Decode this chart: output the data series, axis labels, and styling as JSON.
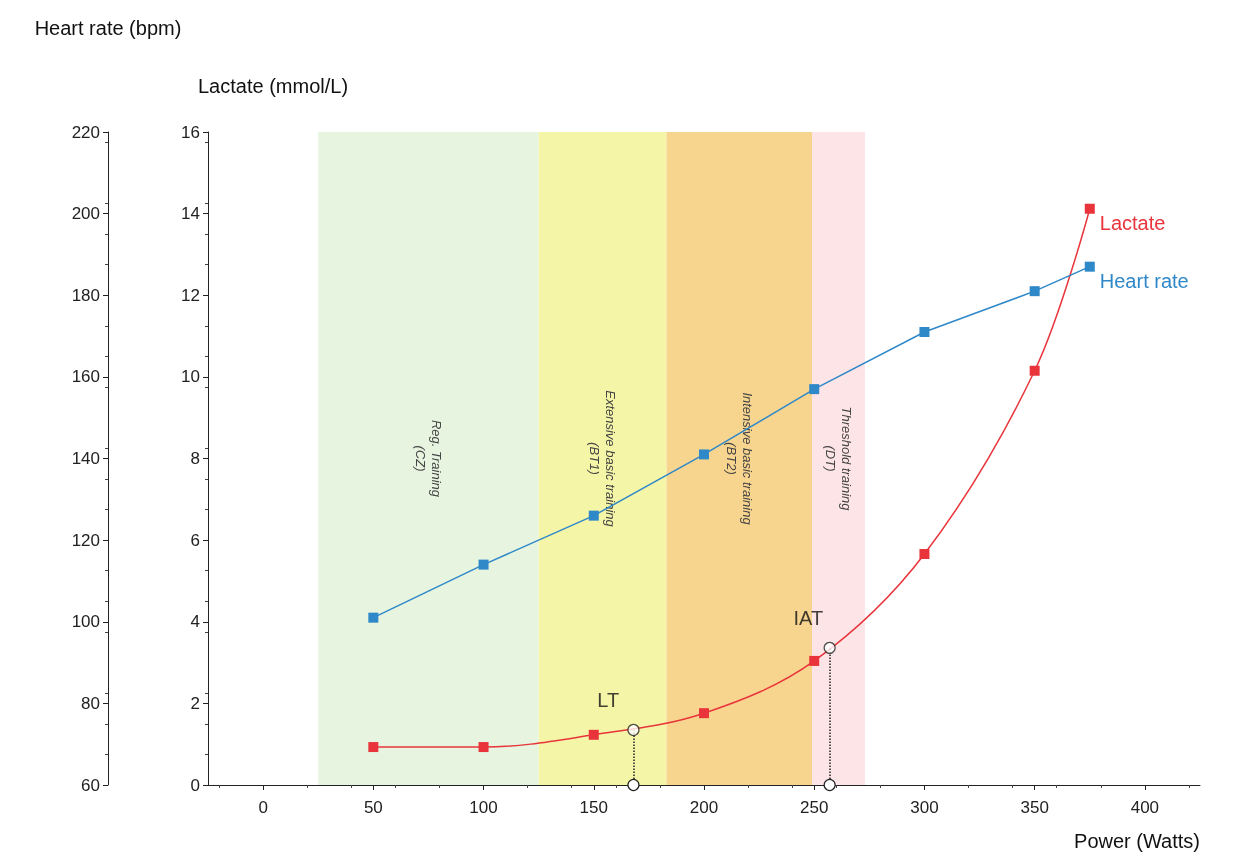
{
  "chart_data": {
    "type": "line",
    "xlabel": "Power (Watts)",
    "ylabel": "Lactate (mmol/L)",
    "y2label": "Heart rate (bpm)",
    "xlim": [
      -25,
      425
    ],
    "xticks": [
      0,
      50,
      100,
      150,
      200,
      250,
      300,
      350,
      400
    ],
    "ylim": [
      0,
      16
    ],
    "yticks": [
      0,
      2,
      4,
      6,
      8,
      10,
      12,
      14,
      16
    ],
    "y2lim": [
      60,
      220
    ],
    "y2ticks": [
      60,
      80,
      100,
      120,
      140,
      160,
      180,
      200,
      220
    ],
    "x": [
      50,
      100,
      150,
      200,
      250,
      300,
      350,
      375
    ],
    "series": [
      {
        "name": "Lactate",
        "color": "#e8343a",
        "values": [
          0.93,
          0.93,
          1.23,
          1.76,
          3.04,
          5.66,
          10.15,
          14.12
        ]
      },
      {
        "name": "Heart rate",
        "color": "#2f88c8",
        "axis": "y2",
        "values": [
          101,
          114,
          126,
          141,
          157,
          171,
          181,
          187
        ]
      },
      {
        "type": "scatter",
        "color": "#ffffff",
        "marker": "circle",
        "x": [
          168,
          257
        ],
        "values": [
          1.35,
          3.36
        ],
        "value_labels": [
          "LT",
          "IAT"
        ]
      }
    ],
    "bands": [
      {
        "axis": "x",
        "from": 25,
        "to": 125,
        "label": "Reg. Training\n(CZ)",
        "color": "#e6f4e0"
      },
      {
        "axis": "x",
        "from": 125,
        "to": 183,
        "label": "Extensive basic training\n(BT1)",
        "color": "#f5f5a8"
      },
      {
        "axis": "x",
        "from": 183,
        "to": 249,
        "label": "Intensive basic training\n(BT2)",
        "color": "#f8d58f"
      },
      {
        "axis": "x",
        "from": 249,
        "to": 273,
        "label": "Threshold training\n(DT)",
        "color": "#fde4e6"
      }
    ],
    "marker": "square",
    "grid": false,
    "legend": false
  }
}
